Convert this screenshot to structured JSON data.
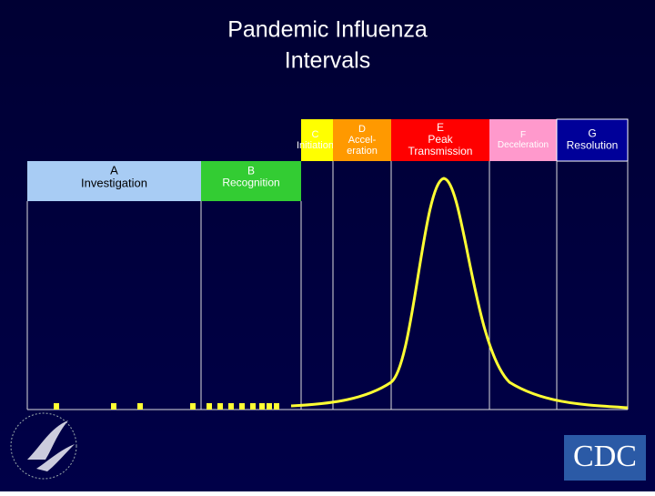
{
  "title": [
    "Pandemic Influenza",
    "Intervals"
  ],
  "intervals": [
    {
      "letter": "A",
      "lines": [
        "Investigation"
      ]
    },
    {
      "letter": "B",
      "lines": [
        "Recognition"
      ]
    },
    {
      "letter": "C",
      "lines": [
        "Initiation"
      ]
    },
    {
      "letter": "D",
      "lines": [
        "Accel-",
        "eration"
      ]
    },
    {
      "letter": "E",
      "lines": [
        "Peak",
        "Transmission"
      ]
    },
    {
      "letter": "F",
      "lines": [
        "Deceleration"
      ]
    },
    {
      "letter": "G",
      "lines": [
        "Resolution"
      ]
    }
  ],
  "logo": "CDC"
}
